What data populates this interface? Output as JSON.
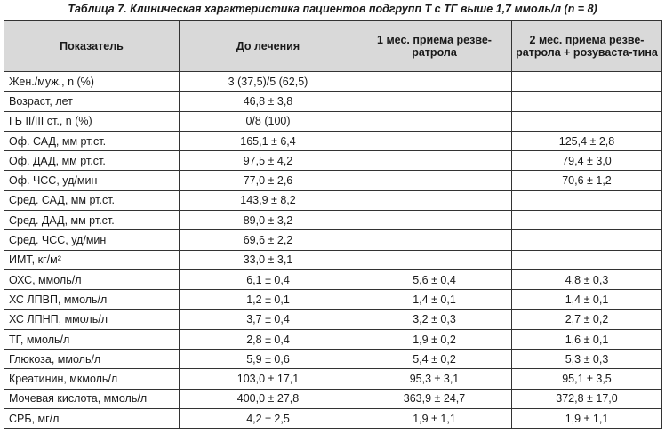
{
  "caption": "Таблица 7. Клиническая характеристика пациентов подгрупп Т с ТГ выше 1,7 ммоль/л (n = 8)",
  "headers": [
    "Показатель",
    "До лечения",
    "1 мес. приема резве-ратрола",
    "2 мес. приема резве-ратрола + розуваста-тина"
  ],
  "rows": [
    [
      "Жен./муж., n (%)",
      "3 (37,5)/5 (62,5)",
      "",
      ""
    ],
    [
      "Возраст, лет",
      "46,8 ± 3,8",
      "",
      ""
    ],
    [
      "ГБ II/III ст., n (%)",
      "0/8 (100)",
      "",
      ""
    ],
    [
      "Оф. САД, мм рт.ст.",
      "165,1 ± 6,4",
      "",
      "125,4 ± 2,8"
    ],
    [
      "Оф. ДАД, мм рт.ст.",
      "97,5 ± 4,2",
      "",
      "79,4 ± 3,0"
    ],
    [
      "Оф. ЧСС, уд/мин",
      "77,0 ± 2,6",
      "",
      "70,6 ± 1,2"
    ],
    [
      "Сред. САД, мм рт.ст.",
      "143,9 ± 8,2",
      "",
      ""
    ],
    [
      "Сред. ДАД, мм рт.ст.",
      "89,0 ± 3,2",
      "",
      ""
    ],
    [
      "Сред. ЧСС, уд/мин",
      "69,6 ± 2,2",
      "",
      ""
    ],
    [
      "ИМТ, кг/м²",
      "33,0 ± 3,1",
      "",
      ""
    ],
    [
      "ОХС, ммоль/л",
      "6,1 ± 0,4",
      "5,6 ± 0,4",
      "4,8 ± 0,3"
    ],
    [
      "ХС ЛПВП, ммоль/л",
      "1,2 ± 0,1",
      "1,4 ± 0,1",
      "1,4 ± 0,1"
    ],
    [
      "ХС ЛПНП, ммоль/л",
      "3,7 ± 0,4",
      "3,2 ± 0,3",
      "2,7 ± 0,2"
    ],
    [
      "ТГ, ммоль/л",
      "2,8 ± 0,4",
      "1,9 ± 0,2",
      "1,6 ± 0,1"
    ],
    [
      "Глюкоза, ммоль/л",
      "5,9 ± 0,6",
      "5,4 ± 0,2",
      "5,3 ± 0,3"
    ],
    [
      "Креатинин, мкмоль/л",
      "103,0 ± 17,1",
      "95,3 ± 3,1",
      "95,1 ± 3,5"
    ],
    [
      "Мочевая кислота, ммоль/л",
      "400,0 ± 27,8",
      "363,9 ± 24,7",
      "372,8 ± 17,0"
    ],
    [
      "СРБ, мг/л",
      "4,2 ± 2,5",
      "1,9 ± 1,1",
      "1,9 ± 1,1"
    ]
  ]
}
